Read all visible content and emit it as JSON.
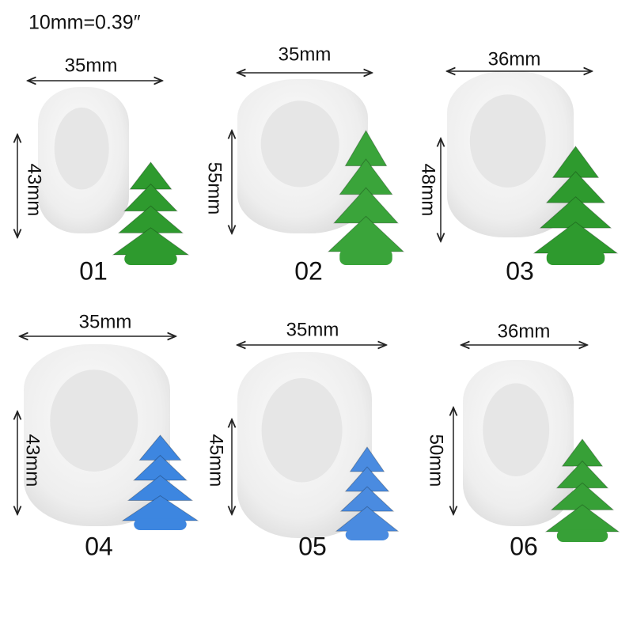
{
  "header": {
    "scale_note": "10mm=0.39″"
  },
  "items": [
    {
      "width": "35mm",
      "height": "43mm",
      "number": "01"
    },
    {
      "width": "35mm",
      "height": "55mm",
      "number": "02"
    },
    {
      "width": "36mm",
      "height": "48mm",
      "number": "03"
    },
    {
      "width": "35mm",
      "height": "43mm",
      "number": "04"
    },
    {
      "width": "35mm",
      "height": "45mm",
      "number": "05"
    },
    {
      "width": "36mm",
      "height": "50mm",
      "number": "06"
    }
  ]
}
